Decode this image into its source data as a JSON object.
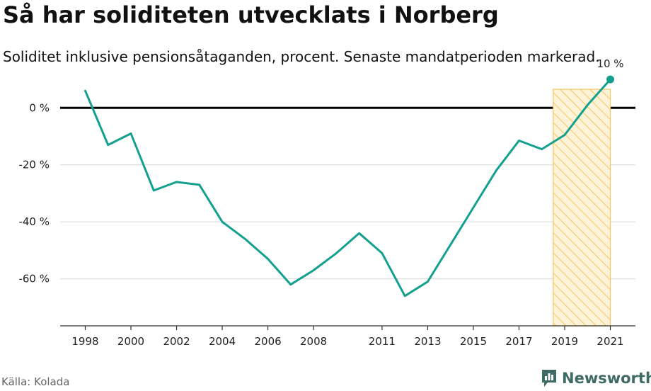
{
  "title": "Så har soliditeten utvecklats i Norberg",
  "subtitle": "Soliditet inklusive pensionsåtaganden, procent. Senaste mandatperioden markerad.",
  "source": "Källa: Kolada",
  "brand": "Newsworthy",
  "colors": {
    "line": "#14a08f",
    "zero_line": "#000000",
    "highlight_fill": "#fde9b8",
    "highlight_stroke": "#f7c660",
    "grid": "#d9d9d9",
    "brand": "#3f6b64"
  },
  "chart_data": {
    "type": "line",
    "x": [
      1998,
      1999,
      2000,
      2001,
      2002,
      2003,
      2004,
      2005,
      2006,
      2007,
      2008,
      2009,
      2010,
      2011,
      2012,
      2013,
      2014,
      2015,
      2016,
      2017,
      2018,
      2019,
      2020,
      2021
    ],
    "series": [
      {
        "values": [
          6,
          -13,
          -9,
          -29,
          -26,
          -27,
          -40,
          -46,
          -53,
          -62,
          -57,
          -51,
          -44,
          -51,
          -66,
          -61,
          -48,
          -35,
          -22,
          -11.5,
          -14.5,
          -9.5,
          1,
          10
        ]
      }
    ],
    "x_ticks": [
      1998,
      2000,
      2002,
      2004,
      2006,
      2008,
      2011,
      2013,
      2015,
      2017,
      2019,
      2021
    ],
    "y_ticks": [
      0,
      -20,
      -40,
      -60
    ],
    "y_tick_labels": [
      "0 %",
      "-20 %",
      "-40 %",
      "-60 %"
    ],
    "xlim": [
      1996.9,
      2022.1
    ],
    "ylim": [
      -76.5,
      13
    ],
    "highlight_range": [
      2018.5,
      2021
    ],
    "end_label": "10 %",
    "grid": true,
    "xlabel": "",
    "ylabel": ""
  }
}
